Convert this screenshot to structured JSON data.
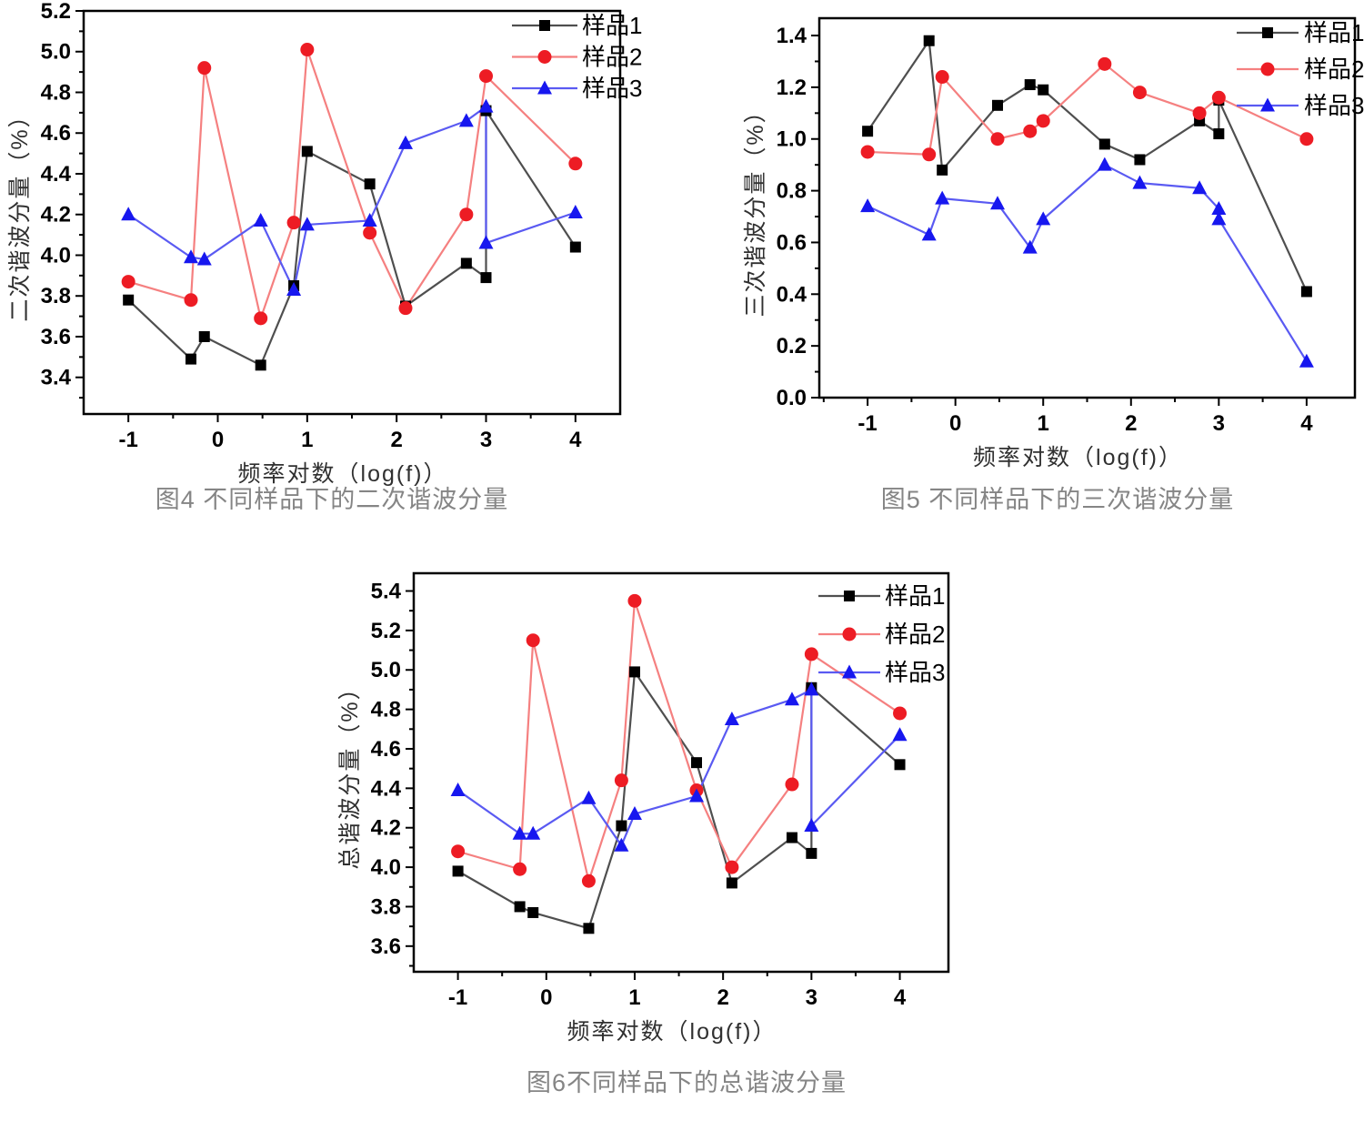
{
  "page": {
    "background": "#ffffff"
  },
  "colors": {
    "axis": "#000000",
    "tick_label": "#000000",
    "axis_title": "#303030",
    "caption": "#858585",
    "series1_marker": "#000000",
    "series1_line": "#4f4f4f",
    "series2_marker": "#ed1c24",
    "series2_line": "#f58080",
    "series3_marker": "#1717ef",
    "series3_line": "#5a5af2"
  },
  "chart_data": [
    {
      "id": "fig4",
      "type": "line",
      "caption": "图4 不同样品下的二次谐波分量",
      "xlabel": "频率对数（log(f)）",
      "ylabel": "二次谐波分量（%）",
      "xlim": [
        -1.5,
        4.5
      ],
      "ylim": [
        3.22,
        5.2
      ],
      "x_major_ticks": [
        -1,
        0,
        1,
        2,
        3,
        4
      ],
      "y_major_ticks": [
        3.4,
        3.6,
        3.8,
        4.0,
        4.2,
        4.4,
        4.6,
        4.8,
        5.0,
        5.2
      ],
      "y_tick_decimals": 1,
      "grid": false,
      "legend_position": "top-right",
      "legend": [
        "样品1",
        "样品2",
        "样品3"
      ],
      "series": [
        {
          "name": "样品1",
          "marker": "square",
          "x": [
            -1,
            -0.3,
            -0.15,
            0.48,
            0.85,
            1,
            1.7,
            2.1,
            2.78,
            3,
            3,
            4
          ],
          "y": [
            3.78,
            3.49,
            3.6,
            3.46,
            3.85,
            4.51,
            4.35,
            3.75,
            3.96,
            3.89,
            4.71,
            4.04
          ]
        },
        {
          "name": "样品2",
          "marker": "circle",
          "x": [
            -1,
            -0.3,
            -0.15,
            0.48,
            0.85,
            1,
            1.7,
            2.1,
            2.78,
            3,
            4
          ],
          "y": [
            3.87,
            3.78,
            4.92,
            3.69,
            4.16,
            5.01,
            4.11,
            3.74,
            4.2,
            4.88,
            4.45
          ]
        },
        {
          "name": "样品3",
          "marker": "triangle",
          "x": [
            -1,
            -0.3,
            -0.15,
            0.48,
            0.85,
            1,
            1.7,
            2.1,
            2.78,
            3,
            3,
            4
          ],
          "y": [
            4.2,
            3.99,
            3.98,
            4.17,
            3.83,
            4.15,
            4.17,
            4.55,
            4.66,
            4.73,
            4.06,
            4.21
          ]
        }
      ]
    },
    {
      "id": "fig5",
      "type": "line",
      "caption": "图5 不同样品下的三次谐波分量",
      "xlabel": "频率对数（log(f)）",
      "ylabel": "三次谐波分量（%）",
      "xlim": [
        -1.55,
        4.55
      ],
      "ylim": [
        0,
        1.467
      ],
      "x_major_ticks": [
        -1,
        0,
        1,
        2,
        3,
        4
      ],
      "y_major_ticks": [
        0.0,
        0.2,
        0.4,
        0.6,
        0.8,
        1.0,
        1.2,
        1.4
      ],
      "y_tick_decimals": 1,
      "grid": false,
      "legend_position": "top-right",
      "legend": [
        "样品1",
        "样品2",
        "样品3"
      ],
      "series": [
        {
          "name": "样品1",
          "marker": "square",
          "x": [
            -1,
            -0.3,
            -0.15,
            0.48,
            0.85,
            1,
            1.7,
            2.1,
            2.78,
            3,
            3,
            4
          ],
          "y": [
            1.03,
            1.38,
            0.88,
            1.13,
            1.21,
            1.19,
            0.98,
            0.92,
            1.07,
            1.02,
            1.15,
            0.41
          ]
        },
        {
          "name": "样品2",
          "marker": "circle",
          "x": [
            -1,
            -0.3,
            -0.15,
            0.48,
            0.85,
            1,
            1.7,
            2.1,
            2.78,
            3,
            4
          ],
          "y": [
            0.95,
            0.94,
            1.24,
            1.0,
            1.03,
            1.07,
            1.29,
            1.18,
            1.1,
            1.16,
            1.0
          ]
        },
        {
          "name": "样品3",
          "marker": "triangle",
          "x": [
            -1,
            -0.3,
            -0.15,
            0.48,
            0.85,
            1,
            1.7,
            2.1,
            2.78,
            3,
            3,
            4
          ],
          "y": [
            0.74,
            0.63,
            0.77,
            0.75,
            0.58,
            0.69,
            0.9,
            0.83,
            0.81,
            0.73,
            0.69,
            0.14
          ]
        }
      ]
    },
    {
      "id": "fig6",
      "type": "line",
      "caption": "图6不同样品下的总谐波分量",
      "xlabel": "频率对数（log(f)）",
      "ylabel": "总谐波分量（%）",
      "xlim": [
        -1.5,
        4.55
      ],
      "ylim": [
        3.47,
        5.49
      ],
      "x_major_ticks": [
        -1,
        0,
        1,
        2,
        3,
        4
      ],
      "y_major_ticks": [
        3.6,
        3.8,
        4.0,
        4.2,
        4.4,
        4.6,
        4.8,
        5.0,
        5.2,
        5.4
      ],
      "y_tick_decimals": 1,
      "grid": false,
      "legend_position": "top-right",
      "legend": [
        "样品1",
        "样品2",
        "样品3"
      ],
      "series": [
        {
          "name": "样品1",
          "marker": "square",
          "x": [
            -1,
            -0.3,
            -0.15,
            0.48,
            0.85,
            1,
            1.7,
            2.1,
            2.78,
            3,
            3,
            4
          ],
          "y": [
            3.98,
            3.8,
            3.77,
            3.69,
            4.21,
            4.99,
            4.53,
            3.92,
            4.15,
            4.07,
            4.91,
            4.52
          ]
        },
        {
          "name": "样品2",
          "marker": "circle",
          "x": [
            -1,
            -0.3,
            -0.15,
            0.48,
            0.85,
            1,
            1.7,
            2.1,
            2.78,
            3,
            4
          ],
          "y": [
            4.08,
            3.99,
            5.15,
            3.93,
            4.44,
            5.35,
            4.39,
            4.0,
            4.42,
            5.08,
            4.78
          ]
        },
        {
          "name": "样品3",
          "marker": "triangle",
          "x": [
            -1,
            -0.3,
            -0.15,
            0.48,
            0.85,
            1,
            1.7,
            2.1,
            2.78,
            3,
            3,
            4
          ],
          "y": [
            4.39,
            4.17,
            4.17,
            4.35,
            4.11,
            4.27,
            4.36,
            4.75,
            4.85,
            4.9,
            4.21,
            4.67
          ]
        }
      ]
    }
  ]
}
